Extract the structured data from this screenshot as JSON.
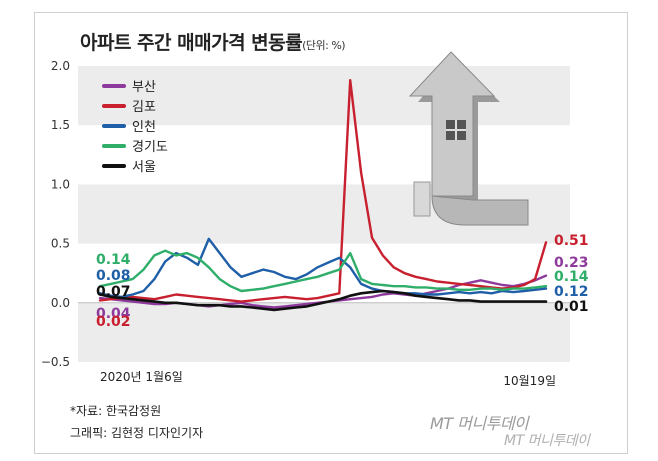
{
  "title": "아파트 주간 매매가격 변동률",
  "unit": "(단위: %)",
  "source": "*자료: 한국감정원",
  "credit": "그래픽: 김현정 디자인기자",
  "watermark": "MT 머니투데이",
  "watermark2": "MT 머니투데이",
  "chart_data": {
    "type": "line",
    "title": "아파트 주간 매매가격 변동률",
    "ylim": [
      -0.5,
      2.0
    ],
    "yticks": [
      "2.0",
      "1.5",
      "1.0",
      "0.5",
      "0.0",
      "−0.5"
    ],
    "ytick_values": [
      2.0,
      1.5,
      1.0,
      0.5,
      0.0,
      -0.5
    ],
    "x_labels": [
      "2020년 1월6일",
      "10월19일"
    ],
    "grid": "horizontal bands",
    "legend_position": "top-left",
    "x": [
      1,
      2,
      3,
      4,
      5,
      6,
      7,
      8,
      9,
      10,
      11,
      12,
      13,
      14,
      15,
      16,
      17,
      18,
      19,
      20,
      21,
      22,
      23,
      24,
      25,
      26,
      27,
      28,
      29,
      30,
      31,
      32,
      33,
      34,
      35,
      36,
      37,
      38,
      39,
      40,
      41,
      42
    ],
    "series": [
      {
        "name": "부산",
        "color": "#8e3a9d",
        "start_label": "0.04",
        "end_label": "0.23",
        "values": [
          0.04,
          0.03,
          0.02,
          0.01,
          0.0,
          -0.01,
          -0.01,
          0.0,
          -0.01,
          -0.02,
          -0.03,
          -0.02,
          -0.01,
          0.0,
          -0.02,
          -0.03,
          -0.04,
          -0.03,
          -0.02,
          -0.01,
          0.0,
          0.01,
          0.02,
          0.03,
          0.04,
          0.05,
          0.07,
          0.08,
          0.07,
          0.06,
          0.08,
          0.1,
          0.12,
          0.15,
          0.17,
          0.19,
          0.17,
          0.15,
          0.14,
          0.16,
          0.19,
          0.23
        ]
      },
      {
        "name": "김포",
        "color": "#c8202f",
        "start_label": "0.02",
        "end_label": "0.51",
        "values": [
          0.02,
          0.03,
          0.04,
          0.05,
          0.04,
          0.03,
          0.05,
          0.07,
          0.06,
          0.05,
          0.04,
          0.03,
          0.02,
          0.01,
          0.02,
          0.03,
          0.04,
          0.05,
          0.04,
          0.03,
          0.04,
          0.06,
          0.08,
          1.88,
          1.1,
          0.55,
          0.4,
          0.3,
          0.25,
          0.22,
          0.2,
          0.18,
          0.17,
          0.16,
          0.15,
          0.14,
          0.13,
          0.12,
          0.13,
          0.15,
          0.2,
          0.51
        ]
      },
      {
        "name": "인천",
        "color": "#1f5fa8",
        "start_label": "0.08",
        "end_label": "0.12",
        "values": [
          0.08,
          0.06,
          0.05,
          0.07,
          0.1,
          0.2,
          0.35,
          0.42,
          0.38,
          0.32,
          0.54,
          0.42,
          0.3,
          0.22,
          0.25,
          0.28,
          0.26,
          0.22,
          0.2,
          0.24,
          0.3,
          0.34,
          0.38,
          0.3,
          0.16,
          0.12,
          0.1,
          0.09,
          0.08,
          0.08,
          0.07,
          0.07,
          0.08,
          0.09,
          0.08,
          0.09,
          0.08,
          0.1,
          0.09,
          0.1,
          0.11,
          0.12
        ]
      },
      {
        "name": "경기도",
        "color": "#2fae6a",
        "start_label": "0.14",
        "end_label": "0.14",
        "values": [
          0.14,
          0.16,
          0.18,
          0.2,
          0.28,
          0.4,
          0.44,
          0.4,
          0.42,
          0.38,
          0.3,
          0.2,
          0.14,
          0.1,
          0.11,
          0.12,
          0.14,
          0.16,
          0.18,
          0.2,
          0.22,
          0.25,
          0.28,
          0.42,
          0.2,
          0.16,
          0.15,
          0.14,
          0.14,
          0.13,
          0.13,
          0.12,
          0.12,
          0.11,
          0.11,
          0.12,
          0.12,
          0.11,
          0.12,
          0.12,
          0.13,
          0.14
        ]
      },
      {
        "name": "서울",
        "color": "#111111",
        "start_label": "0.07",
        "end_label": "0.01",
        "values": [
          0.07,
          0.05,
          0.04,
          0.03,
          0.02,
          0.01,
          0.0,
          0.0,
          -0.01,
          -0.02,
          -0.02,
          -0.02,
          -0.03,
          -0.03,
          -0.04,
          -0.05,
          -0.06,
          -0.05,
          -0.04,
          -0.03,
          -0.01,
          0.01,
          0.03,
          0.06,
          0.08,
          0.09,
          0.1,
          0.09,
          0.08,
          0.06,
          0.05,
          0.04,
          0.03,
          0.02,
          0.02,
          0.01,
          0.01,
          0.01,
          0.01,
          0.01,
          0.01,
          0.01
        ]
      }
    ]
  }
}
